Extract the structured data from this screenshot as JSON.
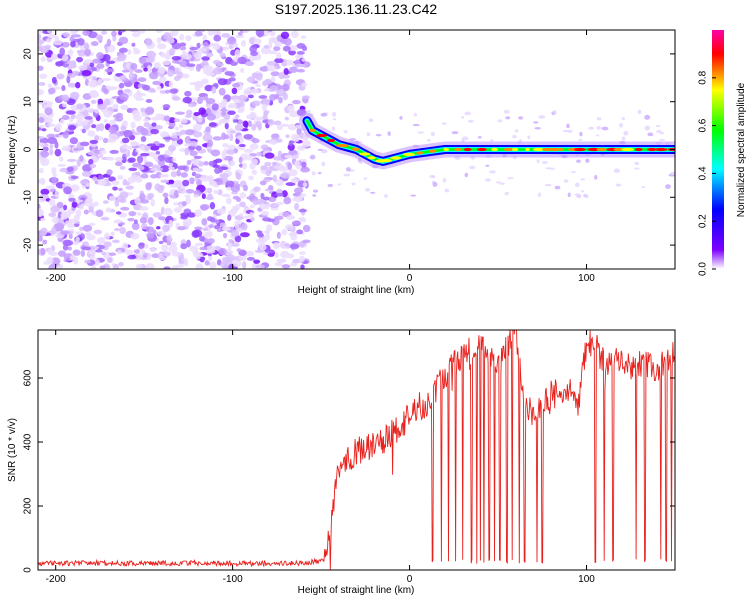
{
  "title": "S197.2025.136.11.23.C42",
  "colorbar": {
    "label": "Normalized spectral amplitude",
    "ticks": [
      "0.0",
      "0.2",
      "0.4",
      "0.6",
      "0.8"
    ],
    "tick_values": [
      0.0,
      0.2,
      0.4,
      0.6,
      0.8
    ],
    "range": [
      0,
      1
    ],
    "stops": [
      "#ffffff",
      "#7e00ff",
      "#0000ff",
      "#00ffff",
      "#00ff00",
      "#ffff00",
      "#ff0000",
      "#ff00aa"
    ]
  },
  "chart_data": [
    {
      "type": "heatmap",
      "title": "S197.2025.136.11.23.C42",
      "xlabel": "Height of straight line (km)",
      "ylabel": "Frequency (Hz)",
      "xlim": [
        -210,
        150
      ],
      "ylim": [
        -25,
        25
      ],
      "x_ticks": [
        -200,
        -100,
        0,
        100
      ],
      "y_ticks": [
        -20,
        -10,
        0,
        10,
        20
      ],
      "noise_region_x": [
        -210,
        -58
      ],
      "signal_track": [
        {
          "x": -58,
          "y": 6.0
        },
        {
          "x": -55,
          "y": 4.0
        },
        {
          "x": -50,
          "y": 3.0
        },
        {
          "x": -45,
          "y": 2.0
        },
        {
          "x": -40,
          "y": 1.0
        },
        {
          "x": -35,
          "y": 0.5
        },
        {
          "x": -30,
          "y": 0.0
        },
        {
          "x": -25,
          "y": -1.0
        },
        {
          "x": -20,
          "y": -2.0
        },
        {
          "x": -15,
          "y": -2.5
        },
        {
          "x": -10,
          "y": -2.0
        },
        {
          "x": -5,
          "y": -1.5
        },
        {
          "x": 0,
          "y": -1.0
        },
        {
          "x": 10,
          "y": -0.5
        },
        {
          "x": 20,
          "y": 0.0
        },
        {
          "x": 40,
          "y": 0.0
        },
        {
          "x": 60,
          "y": 0.0
        },
        {
          "x": 80,
          "y": 0.0
        },
        {
          "x": 100,
          "y": 0.0
        },
        {
          "x": 120,
          "y": 0.0
        },
        {
          "x": 150,
          "y": 0.0
        }
      ]
    },
    {
      "type": "line",
      "xlabel": "Height of straight line (km)",
      "ylabel": "SNR (10 * v/v)",
      "xlim": [
        -210,
        150
      ],
      "ylim": [
        0,
        750
      ],
      "x_ticks": [
        -200,
        -100,
        0,
        100
      ],
      "y_ticks": [
        0,
        200,
        400,
        600
      ],
      "series": [
        {
          "color": "#e8211d",
          "x": [
            -210,
            -180,
            -150,
            -120,
            -90,
            -60,
            -48,
            -45,
            -42,
            -40,
            -35,
            -30,
            -25,
            -20,
            -15,
            -10,
            -5,
            0,
            5,
            10,
            15,
            20,
            25,
            30,
            35,
            40,
            45,
            50,
            55,
            60,
            62,
            65,
            70,
            75,
            80,
            85,
            90,
            95,
            100,
            105,
            110,
            115,
            120,
            125,
            130,
            135,
            140,
            145,
            150
          ],
          "y": [
            20,
            22,
            20,
            22,
            20,
            22,
            30,
            120,
            250,
            330,
            350,
            370,
            380,
            390,
            400,
            430,
            450,
            480,
            510,
            520,
            560,
            610,
            640,
            670,
            690,
            690,
            670,
            640,
            690,
            750,
            640,
            520,
            480,
            500,
            560,
            560,
            570,
            510,
            700,
            710,
            640,
            660,
            640,
            640,
            650,
            640,
            620,
            660,
            690
          ]
        }
      ],
      "dips_x": [
        13,
        18,
        22,
        26,
        30,
        35,
        38,
        40,
        42,
        45,
        48,
        51,
        55,
        58,
        62,
        65,
        72,
        75,
        105,
        110,
        115,
        128,
        133,
        142,
        145,
        148
      ]
    }
  ]
}
